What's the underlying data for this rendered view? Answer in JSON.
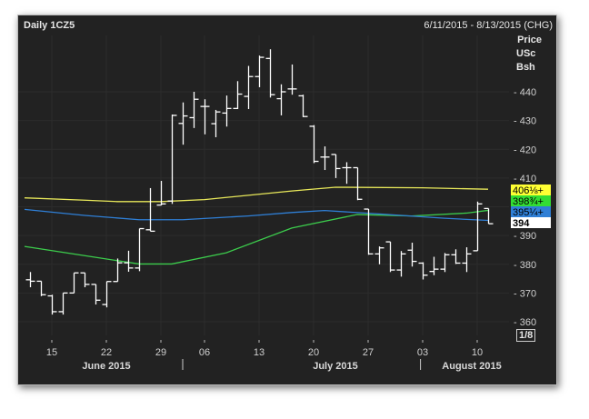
{
  "header": {
    "title": "Daily 1CZ5",
    "date_range": "6/11/2015 - 8/13/2015 (CHG)"
  },
  "axis_units": [
    "Price",
    "USc",
    "Bsh"
  ],
  "scale_button": "1/8",
  "colors": {
    "background": "#222222",
    "bars": "#ffffff",
    "ma_yellow": "#e8e85a",
    "ma_green": "#3ccc4c",
    "ma_blue": "#2f7fd6",
    "grid": "#2c2c2c"
  },
  "chart_data": {
    "type": "ohlc",
    "title": "Daily 1CZ5",
    "ylim": [
      356,
      458
    ],
    "yticks": [
      360,
      370,
      380,
      390,
      400,
      410,
      420,
      430,
      440
    ],
    "ytick_labels": [
      "360",
      "370",
      "380",
      "390",
      "",
      "410",
      "420",
      "430",
      "440"
    ],
    "xtick_labels": [
      {
        "index": 2,
        "label": "15"
      },
      {
        "index": 7,
        "label": "22"
      },
      {
        "index": 12,
        "label": "29"
      },
      {
        "index": 16,
        "label": "06"
      },
      {
        "index": 21,
        "label": "13"
      },
      {
        "index": 26,
        "label": "20"
      },
      {
        "index": 31,
        "label": "27"
      },
      {
        "index": 36,
        "label": "03"
      },
      {
        "index": 41,
        "label": "10"
      }
    ],
    "months": [
      {
        "index": 7,
        "label": "June 2015"
      },
      {
        "index": 28,
        "label": "July 2015"
      },
      {
        "index": 40.5,
        "label": "August 2015"
      }
    ],
    "month_separators": [
      14,
      35.8
    ],
    "bars": [
      [
        374.6,
        377.3,
        372,
        374.1
      ],
      [
        374.1,
        374.1,
        368.9,
        369.4
      ],
      [
        369,
        369.4,
        362.5,
        363.5
      ],
      [
        363.5,
        370,
        362.5,
        370
      ],
      [
        370,
        377,
        370,
        377
      ],
      [
        377,
        377,
        372,
        373
      ],
      [
        373,
        373,
        366,
        367.5
      ],
      [
        366,
        374,
        365,
        374
      ],
      [
        374,
        382,
        374,
        380.5
      ],
      [
        380.5,
        384.7,
        377.4,
        378.7
      ],
      [
        378.7,
        392.4,
        377.6,
        392.4
      ],
      [
        392,
        406.5,
        391.5,
        391.5
      ],
      [
        400.6,
        409,
        400.5,
        401
      ],
      [
        402,
        432.1,
        401,
        431.8
      ],
      [
        429,
        436.3,
        421.6,
        431.6
      ],
      [
        431,
        440,
        427.4,
        437.4
      ],
      [
        434.9,
        437.4,
        425.2,
        434.9
      ],
      [
        428.9,
        433.7,
        424.2,
        433
      ],
      [
        432.6,
        438.7,
        427.9,
        434.2
      ],
      [
        434.2,
        443.7,
        434,
        439.2
      ],
      [
        438.4,
        449,
        434,
        445.3
      ],
      [
        445.3,
        452.6,
        441.6,
        452
      ],
      [
        451.6,
        454.8,
        438,
        439
      ],
      [
        437.6,
        442.6,
        431.8,
        440
      ],
      [
        441,
        449.5,
        439,
        441
      ],
      [
        438.6,
        439,
        431.2,
        431.4
      ],
      [
        428,
        428.4,
        415.2,
        415.8
      ],
      [
        417.3,
        421,
        412.8,
        417.3
      ],
      [
        418.2,
        418.2,
        410,
        413.3
      ],
      [
        413.6,
        415.5,
        408,
        413.6
      ],
      [
        413.6,
        413.6,
        402.3,
        402.6
      ],
      [
        399.2,
        399.2,
        383.3,
        383.6
      ],
      [
        383.6,
        386.2,
        380,
        385.7
      ],
      [
        387.8,
        387.8,
        377.3,
        378
      ],
      [
        378,
        384.6,
        375.7,
        383.6
      ],
      [
        384.9,
        387.5,
        379.2,
        381
      ],
      [
        380.4,
        380.7,
        374.7,
        376.2
      ],
      [
        377.5,
        382.6,
        376.2,
        378.3
      ],
      [
        378.3,
        383.9,
        377.3,
        383.3
      ],
      [
        383.3,
        385.2,
        380.1,
        380.4
      ],
      [
        380.4,
        385.9,
        377.3,
        383.6
      ],
      [
        384.7,
        401.8,
        384.7,
        401
      ],
      [
        399.4,
        399.4,
        394.1,
        394.1
      ]
    ],
    "moving_averages": [
      {
        "name": "yellow",
        "last_label": "406⅛+",
        "last": 406.125,
        "points": [
          [
            -0.5,
            403.1
          ],
          [
            5,
            402.3
          ],
          [
            8,
            401.8
          ],
          [
            12,
            401.8
          ],
          [
            16,
            402.5
          ],
          [
            24,
            405.5
          ],
          [
            28,
            406.8
          ],
          [
            36,
            406.6
          ],
          [
            42,
            406.1
          ]
        ]
      },
      {
        "name": "green",
        "last_label": "398¾+",
        "last": 398.75,
        "points": [
          [
            -0.5,
            386.2
          ],
          [
            5,
            383
          ],
          [
            10,
            380.1
          ],
          [
            13,
            380.1
          ],
          [
            18,
            384
          ],
          [
            24,
            392.6
          ],
          [
            30,
            397.3
          ],
          [
            35,
            396.8
          ],
          [
            40,
            397.8
          ],
          [
            42,
            398.75
          ]
        ]
      },
      {
        "name": "blue",
        "last_label": "395¼+",
        "last": 395.25,
        "points": [
          [
            -0.5,
            399.1
          ],
          [
            5,
            397
          ],
          [
            10,
            395.5
          ],
          [
            14,
            395.5
          ],
          [
            20,
            396.8
          ],
          [
            24,
            398
          ],
          [
            27,
            398.7
          ],
          [
            32,
            397.5
          ],
          [
            38,
            396
          ],
          [
            42,
            395.25
          ]
        ]
      }
    ],
    "last_price_label": "394",
    "last_price": 394
  }
}
